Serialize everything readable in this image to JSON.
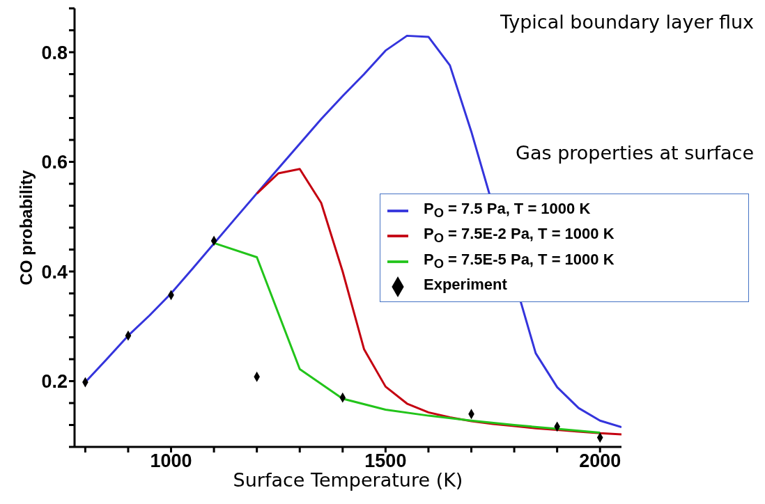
{
  "chart_data": {
    "type": "line",
    "xlabel": "Surface Temperature (K)",
    "ylabel": "CO probability",
    "annotations": [
      "Typical boundary layer flux",
      "Gas properties at surface"
    ],
    "xlim": [
      775,
      2050
    ],
    "xticks": [
      {
        "value": 800,
        "label": null
      },
      {
        "value": 900,
        "label": null
      },
      1000,
      {
        "value": 1100,
        "label": null
      },
      {
        "value": 1200,
        "label": null
      },
      {
        "value": 1300,
        "label": null
      },
      {
        "value": 1400,
        "label": null
      },
      1500,
      {
        "value": 1600,
        "label": null
      },
      {
        "value": 1700,
        "label": null
      },
      {
        "value": 1800,
        "label": null
      },
      {
        "value": 1900,
        "label": null
      },
      2000
    ],
    "ylim": [
      0.08,
      0.88
    ],
    "yticks": [
      {
        "value": 0.08,
        "label": null
      },
      {
        "value": 0.12,
        "label": null
      },
      {
        "value": 0.16,
        "label": null
      },
      0.2,
      {
        "value": 0.24,
        "label": null
      },
      {
        "value": 0.28,
        "label": null
      },
      {
        "value": 0.32,
        "label": null
      },
      {
        "value": 0.36,
        "label": null
      },
      0.4,
      {
        "value": 0.44,
        "label": null
      },
      {
        "value": 0.48,
        "label": null
      },
      {
        "value": 0.52,
        "label": null
      },
      {
        "value": 0.56,
        "label": null
      },
      0.6,
      {
        "value": 0.64,
        "label": null
      },
      {
        "value": 0.68,
        "label": null
      },
      {
        "value": 0.72,
        "label": null
      },
      {
        "value": 0.76,
        "label": null
      },
      0.8,
      {
        "value": 0.84,
        "label": null
      },
      {
        "value": 0.88,
        "label": null
      }
    ],
    "legend": "right",
    "series": [
      {
        "name": "P$_{O}$ = 7.5 Pa, T = 1000 K",
        "color": "#3434dc",
        "x": [
          800,
          850,
          900,
          950,
          1000,
          1050,
          1150,
          1250,
          1300,
          1350,
          1400,
          1450,
          1500,
          1550,
          1600,
          1650,
          1700,
          1850,
          1900,
          1950,
          2000,
          2050
        ],
        "values": [
          0.198,
          0.24,
          0.283,
          0.32,
          0.36,
          0.405,
          0.497,
          0.588,
          0.633,
          0.678,
          0.72,
          0.76,
          0.803,
          0.83,
          0.828,
          0.776,
          0.655,
          0.251,
          0.189,
          0.151,
          0.128,
          0.116
        ]
      },
      {
        "name": "P$_{O}$ = 7.5E-2 Pa, T = 1000 K",
        "color": "#c40010",
        "x": [
          1200,
          1250,
          1300,
          1350,
          1400,
          1450,
          1500,
          1550,
          1600,
          1650,
          1700,
          1750,
          1800,
          1850,
          1900,
          1950,
          2000,
          2050
        ],
        "values": [
          0.542,
          0.579,
          0.587,
          0.525,
          0.4,
          0.258,
          0.19,
          0.159,
          0.143,
          0.134,
          0.127,
          0.122,
          0.118,
          0.114,
          0.111,
          0.108,
          0.105,
          0.103
        ]
      },
      {
        "name": "P$_{O}$ = 7.5E-5 Pa, T = 1000 K",
        "color": "#22c41a",
        "x": [
          1100,
          1200,
          1300,
          1400,
          1500,
          1600,
          1700,
          1800,
          1900,
          2000
        ],
        "values": [
          0.452,
          0.426,
          0.222,
          0.168,
          0.148,
          0.137,
          0.128,
          0.12,
          0.113,
          0.106
        ]
      },
      {
        "name": "Experiment",
        "type": "scatter",
        "color": "#000000",
        "marker": "diamond",
        "x": [
          800,
          900,
          1000,
          1100,
          1200,
          1400,
          1700,
          1900,
          2000
        ],
        "values": [
          0.198,
          0.283,
          0.357,
          0.456,
          0.208,
          0.17,
          0.14,
          0.117,
          0.097
        ]
      }
    ]
  }
}
